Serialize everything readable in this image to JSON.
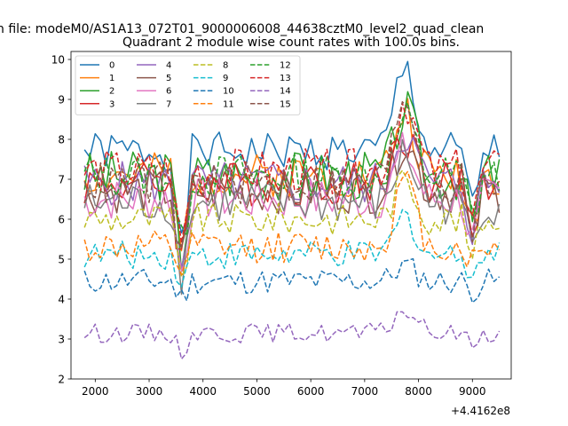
{
  "suptitle": "n file: modeM0/AS1A13_072T01_9000006008_44638cztM0_level2_quad_clean",
  "chart_data": {
    "type": "line",
    "title": "Quadrant 2 module wise count rates with 100.0s bins.",
    "xlabel": "",
    "ylabel": "",
    "offset_text": "+4.4162e8",
    "xlim": [
      1550,
      9720
    ],
    "ylim": [
      2,
      10.2
    ],
    "x_ticks": [
      2000,
      3000,
      4000,
      5000,
      6000,
      7000,
      8000,
      9000
    ],
    "y_ticks": [
      2,
      3,
      4,
      5,
      6,
      7,
      8,
      9,
      10
    ],
    "grid": false,
    "legend": {
      "placement": "top-left",
      "columns": 4
    },
    "x_start": 1800,
    "x_step": 100,
    "series": [
      {
        "name": "0",
        "color": "#1f77b4",
        "style": "solid",
        "base": 7.7,
        "amp": 0.3,
        "dip": 4.2,
        "peak": 2.1,
        "seed": 1
      },
      {
        "name": "1",
        "color": "#ff7f0e",
        "style": "solid",
        "base": 7.1,
        "amp": 0.35,
        "dip": 3.3,
        "peak": 1.6,
        "seed": 2
      },
      {
        "name": "2",
        "color": "#2ca02c",
        "style": "solid",
        "base": 7.1,
        "amp": 0.4,
        "dip": 3.3,
        "peak": 1.6,
        "seed": 3
      },
      {
        "name": "3",
        "color": "#d62728",
        "style": "solid",
        "base": 6.9,
        "amp": 0.35,
        "dip": 3.2,
        "peak": 1.2,
        "seed": 4
      },
      {
        "name": "4",
        "color": "#9467bd",
        "style": "solid",
        "base": 6.9,
        "amp": 0.35,
        "dip": 3.2,
        "peak": 1.3,
        "seed": 5
      },
      {
        "name": "5",
        "color": "#8c564b",
        "style": "solid",
        "base": 6.7,
        "amp": 0.35,
        "dip": 3.1,
        "peak": 1.3,
        "seed": 6
      },
      {
        "name": "6",
        "color": "#e377c2",
        "style": "solid",
        "base": 6.5,
        "amp": 0.35,
        "dip": 3.0,
        "peak": 1.2,
        "seed": 7
      },
      {
        "name": "7",
        "color": "#7f7f7f",
        "style": "solid",
        "base": 6.4,
        "amp": 0.35,
        "dip": 3.0,
        "peak": 1.2,
        "seed": 8
      },
      {
        "name": "8",
        "color": "#bcbd22",
        "style": "dashed",
        "base": 6.0,
        "amp": 0.25,
        "dip": 2.6,
        "peak": 1.0,
        "seed": 9
      },
      {
        "name": "9",
        "color": "#17becf",
        "style": "dashed",
        "base": 5.1,
        "amp": 0.22,
        "dip": 1.0,
        "peak": 1.0,
        "seed": 10
      },
      {
        "name": "10",
        "color": "#1f77b4",
        "style": "dashed",
        "base": 4.45,
        "amp": 0.2,
        "dip": 0.7,
        "peak": 0.4,
        "seed": 11
      },
      {
        "name": "11",
        "color": "#ff7f0e",
        "style": "dashed",
        "base": 5.3,
        "amp": 0.25,
        "dip": 1.0,
        "peak": 1.7,
        "seed": 12
      },
      {
        "name": "12",
        "color": "#2ca02c",
        "style": "dashed",
        "base": 7.1,
        "amp": 0.35,
        "dip": 3.0,
        "peak": 1.4,
        "seed": 13
      },
      {
        "name": "13",
        "color": "#d62728",
        "style": "dashed",
        "base": 7.2,
        "amp": 0.35,
        "dip": 3.1,
        "peak": 1.8,
        "seed": 14
      },
      {
        "name": "14",
        "color": "#9467bd",
        "style": "dashed",
        "base": 3.15,
        "amp": 0.15,
        "dip": 0.8,
        "peak": 0.6,
        "seed": 15
      },
      {
        "name": "15",
        "color": "#8c564b",
        "style": "dashed",
        "base": 6.9,
        "amp": 0.35,
        "dip": 3.0,
        "peak": 2.3,
        "seed": 16
      }
    ]
  }
}
